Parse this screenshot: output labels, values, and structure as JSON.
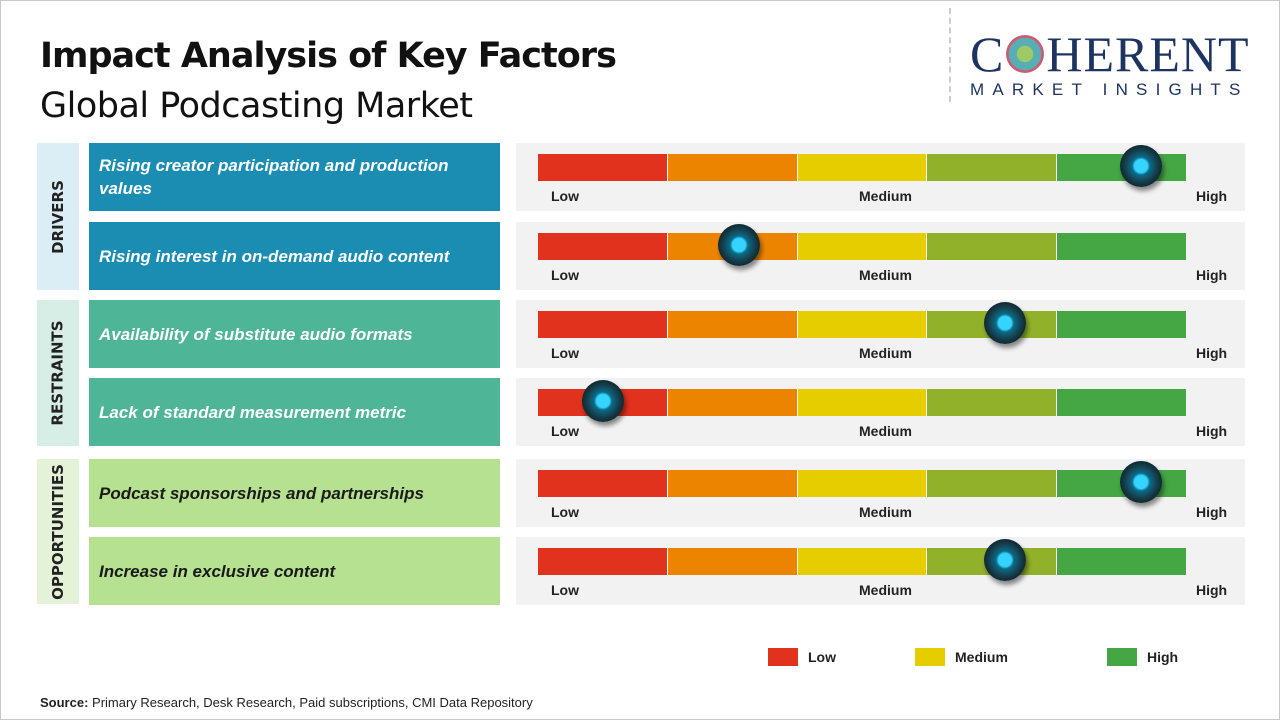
{
  "title": "Impact Analysis of Key Factors",
  "subtitle": "Global Podcasting Market",
  "logo": {
    "main": "COHERENT",
    "sub": "MARKET INSIGHTS"
  },
  "categories": [
    {
      "label": "DRIVERS",
      "bg": "#dbeef6",
      "box": "#1b8db3",
      "text": "#ffffff"
    },
    {
      "label": "RESTRAINTS",
      "bg": "#d6eee6",
      "box": "#4fb597",
      "text": "#ffffff"
    },
    {
      "label": "OPPORTUNITIES",
      "bg": "#e4f3d8",
      "box": "#b6e190",
      "text": "#1a1a1a"
    }
  ],
  "scale_colors": [
    "#e0321c",
    "#ed8400",
    "#e5cd00",
    "#92b12a",
    "#45a644"
  ],
  "scale_labels": {
    "low": "Low",
    "medium": "Medium",
    "high": "High"
  },
  "factors": [
    {
      "category": 0,
      "label": "Rising creator participation and production values",
      "impact_level": 0.93
    },
    {
      "category": 0,
      "label": "Rising interest in on-demand audio content",
      "impact_level": 0.31
    },
    {
      "category": 1,
      "label": "Availability of substitute audio formats",
      "impact_level": 0.72
    },
    {
      "category": 1,
      "label": "Lack of standard measurement metric",
      "impact_level": 0.1
    },
    {
      "category": 2,
      "label": "Podcast sponsorships and partnerships",
      "impact_level": 0.93
    },
    {
      "category": 2,
      "label": "Increase in exclusive content",
      "impact_level": 0.72
    }
  ],
  "legend": [
    {
      "label": "Low",
      "color": "#e0321c"
    },
    {
      "label": "Medium",
      "color": "#e5cd00"
    },
    {
      "label": "High",
      "color": "#45a644"
    }
  ],
  "source": {
    "label": "Source:",
    "text": " Primary Research, Desk Research, Paid subscriptions, CMI Data Repository"
  }
}
